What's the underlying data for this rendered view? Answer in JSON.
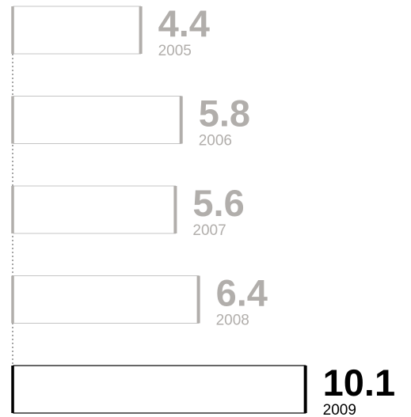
{
  "chart_data": {
    "type": "bar",
    "orientation": "horizontal",
    "categories": [
      "2005",
      "2006",
      "2007",
      "2008",
      "2009"
    ],
    "values": [
      4.4,
      5.8,
      5.6,
      6.4,
      10.1
    ],
    "value_labels": [
      "4.4",
      "5.8",
      "5.6",
      "6.4",
      "10.1"
    ],
    "highlight_index": 4,
    "title": "",
    "xlabel": "",
    "ylabel": "",
    "grid": false,
    "colors": {
      "bar_fill": "#ffffff",
      "bar_outline": "#c4c4c4",
      "muted": "#b1aeab",
      "highlight": "#000000",
      "baseline": "#888888"
    }
  }
}
